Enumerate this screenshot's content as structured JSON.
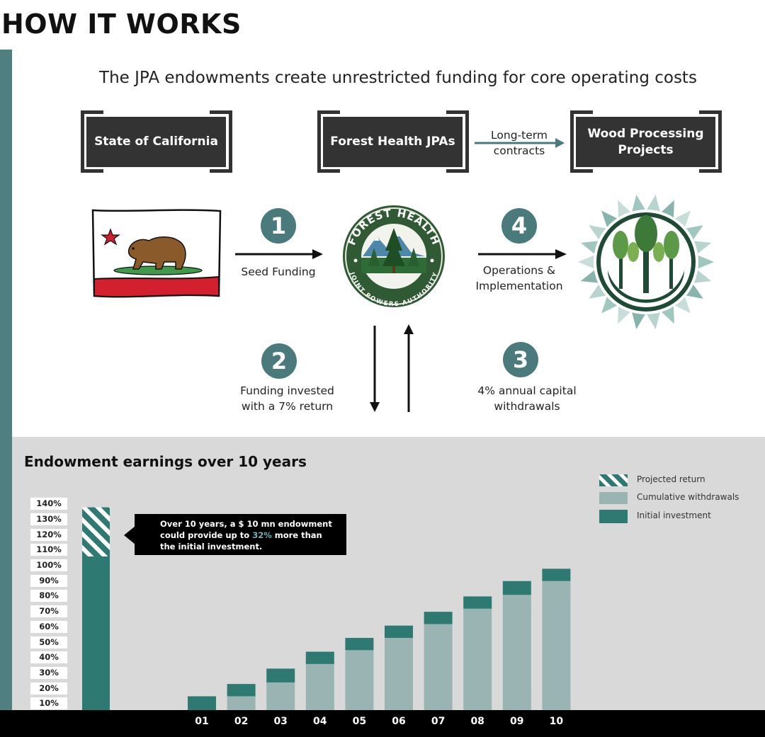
{
  "header": {
    "title": "HOW IT WORKS",
    "subtitle": "The JPA endowments create unrestricted funding for core operating costs"
  },
  "boxes": {
    "state": "State of California",
    "jpa": "Forest Health JPAs",
    "wood_line1": "Wood Processing",
    "wood_line2": "Projects"
  },
  "contracts": {
    "line1": "Long-term",
    "line2": "contracts"
  },
  "steps": [
    {
      "number": "1",
      "label_line1": "Seed Funding",
      "label_line2": ""
    },
    {
      "number": "2",
      "label_line1": "Funding invested",
      "label_line2": "with a 7% return"
    },
    {
      "number": "3",
      "label_line1": "4% annual capital",
      "label_line2": "withdrawals"
    },
    {
      "number": "4",
      "label_line1": "Operations &",
      "label_line2": "Implementation"
    }
  ],
  "logos": {
    "jpa_top": "FOREST HEALTH",
    "jpa_bottom": "JOINT POWERS AUTHORITY"
  },
  "colors": {
    "teal_dark": "#2e7a72",
    "teal_light": "#9ab4b4",
    "rail": "#4f7f80",
    "step_circle": "#4a7a7c",
    "box": "#333333"
  },
  "callout": {
    "line1": "Over 10 years, a $ 10 mn endowment",
    "line2_before": "could provide up to ",
    "line2_highlight": "32%",
    "line2_after": " more than",
    "line3": "the initial investment."
  },
  "chart_data": {
    "type": "bar",
    "title": "Endowment earnings over 10 years",
    "xlabel": "",
    "ylabel": "",
    "y_ticks": [
      "10%",
      "20%",
      "30%",
      "40%",
      "50%",
      "60%",
      "70%",
      "80%",
      "90%",
      "100%",
      "110%",
      "120%",
      "130%",
      "140%"
    ],
    "ylim": [
      0,
      140
    ],
    "legend": [
      {
        "name": "Projected return",
        "style": "hatched",
        "color": "#2e7a72"
      },
      {
        "name": "Cumulative withdrawals",
        "style": "solid",
        "color": "#9ab4b4"
      },
      {
        "name": "Initial investment",
        "style": "solid",
        "color": "#2e7a72"
      }
    ],
    "legend_position": "top-right",
    "initial_bar": {
      "initial_investment": 100,
      "projected_return": 32
    },
    "categories": [
      "01",
      "02",
      "03",
      "04",
      "05",
      "06",
      "07",
      "08",
      "09",
      "10"
    ],
    "series": [
      {
        "name": "Cumulative withdrawals",
        "values": [
          0,
          9,
          18,
          30,
          39,
          47,
          56,
          66,
          75,
          84
        ]
      },
      {
        "name": "Initial investment",
        "values": [
          9,
          8,
          9,
          8,
          8,
          8,
          8,
          8,
          9,
          8
        ]
      }
    ]
  }
}
